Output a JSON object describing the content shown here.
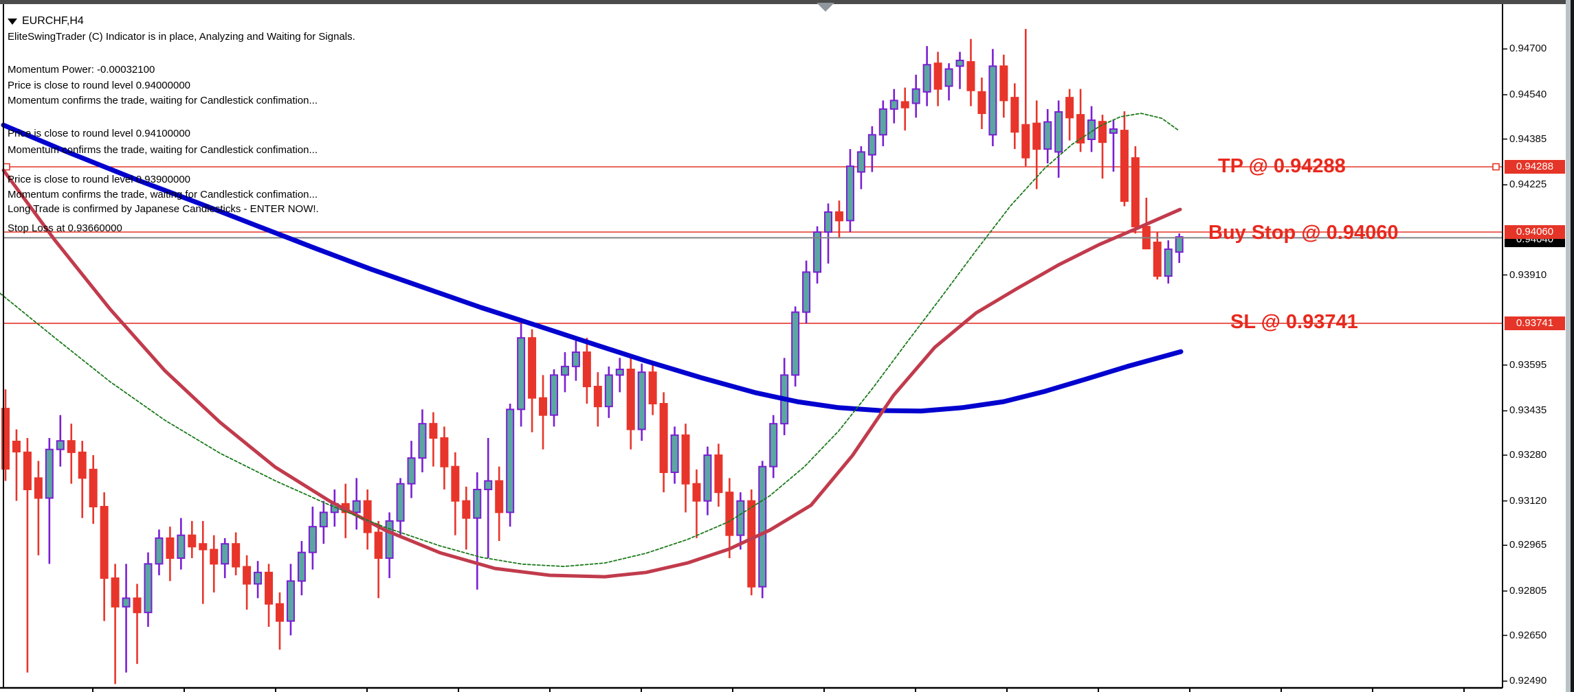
{
  "window": {
    "app_context": "MetaTrader chart window",
    "titlebar_color": "#4b4b4b"
  },
  "symbol_header": {
    "dropdown_icon": "triangle-down",
    "symbol": "EURCHF,H4"
  },
  "comment_block": {
    "lines": [
      "EliteSwingTrader (C) Indicator is in place, Analyzing and Waiting for Signals.",
      "Momentum Power: -0.00032100",
      "Price is close to round level 0.94000000",
      "Momentum confirms the trade, waiting for Candlestick confimation...",
      "Price is close to round level 0.94100000",
      "Momentum confirms the trade, waiting for Candlestick confimation...",
      "Price is close to round level 0.93900000",
      "Momentum confirms the trade, waiting for Candlestick confimation...",
      "Long Trade is confirmed by Japanese Candlesticks - ENTER NOW!.",
      "Stop Loss at 0.93660000"
    ]
  },
  "trade_labels": {
    "tp": "TP @ 0.94288",
    "buy_stop": "Buy Stop @ 0.94060",
    "sl": "SL @ 0.93741"
  },
  "price_axis": {
    "ticks": [
      "0.94700",
      "0.94540",
      "0.94385",
      "0.94225",
      "0.93910",
      "0.93595",
      "0.93435",
      "0.93280",
      "0.93120",
      "0.92965",
      "0.92805",
      "0.92650",
      "0.92490"
    ],
    "badge_tp": "0.94288",
    "badge_buy_stop": "0.94060",
    "badge_sl": "0.93741",
    "badge_bid": "0.94040"
  },
  "colors": {
    "bull_body": "#5aa7a1",
    "bull_outline": "#7a1fd2",
    "bear_body": "#e8352b",
    "line_red": "#e53528",
    "bid_gray": "#7f8487",
    "ma_blue": "#0202cf",
    "ma_crimson": "#c13b4c",
    "ma_green": "#1b7a1b",
    "label_red": "#e8291e"
  },
  "chart_data": {
    "type": "candlestick",
    "symbol": "EURCHF",
    "timeframe": "H4",
    "ylim": [
      0.9244,
      0.9481
    ],
    "price_ticks": [
      0.947,
      0.9454,
      0.94385,
      0.94225,
      0.9391,
      0.93595,
      0.93435,
      0.9328,
      0.9312,
      0.92965,
      0.92805,
      0.9265,
      0.9249
    ],
    "h_lines": [
      {
        "name": "tp-line",
        "price": 0.94288,
        "color": "#e53528",
        "end_squares": true
      },
      {
        "name": "buy-stop-line",
        "price": 0.9406,
        "color": "#e53528",
        "end_squares": false
      },
      {
        "name": "sl-line",
        "price": 0.93741,
        "color": "#e53528",
        "end_squares": false
      }
    ],
    "bid_line": {
      "price": 0.9404,
      "color": "#7f8487"
    },
    "ohlc": [
      [
        0.93443,
        0.9351,
        0.9319,
        0.93232
      ],
      [
        0.93328,
        0.9337,
        0.9312,
        0.93292
      ],
      [
        0.9329,
        0.9334,
        0.9252,
        0.9316
      ],
      [
        0.932,
        0.9326,
        0.9293,
        0.9313
      ],
      [
        0.9313,
        0.9334,
        0.929,
        0.933
      ],
      [
        0.933,
        0.9342,
        0.9324,
        0.9333
      ],
      [
        0.9333,
        0.9339,
        0.9318,
        0.9329
      ],
      [
        0.9329,
        0.9333,
        0.9306,
        0.932
      ],
      [
        0.9323,
        0.9328,
        0.9304,
        0.931
      ],
      [
        0.931,
        0.9315,
        0.927,
        0.9285
      ],
      [
        0.9285,
        0.929,
        0.9248,
        0.9275
      ],
      [
        0.9275,
        0.929,
        0.9252,
        0.9278
      ],
      [
        0.9278,
        0.9283,
        0.9255,
        0.9273
      ],
      [
        0.9273,
        0.9294,
        0.9268,
        0.929
      ],
      [
        0.929,
        0.9302,
        0.9286,
        0.9299
      ],
      [
        0.9299,
        0.9303,
        0.9284,
        0.9292
      ],
      [
        0.9292,
        0.9306,
        0.9288,
        0.93
      ],
      [
        0.93,
        0.9305,
        0.9292,
        0.9296
      ],
      [
        0.9297,
        0.9305,
        0.9276,
        0.9295
      ],
      [
        0.9295,
        0.93,
        0.928,
        0.929
      ],
      [
        0.929,
        0.9299,
        0.9285,
        0.9297
      ],
      [
        0.9297,
        0.9301,
        0.9286,
        0.9289
      ],
      [
        0.9289,
        0.9293,
        0.9274,
        0.9283
      ],
      [
        0.9283,
        0.9291,
        0.9278,
        0.9287
      ],
      [
        0.9287,
        0.929,
        0.9268,
        0.9276
      ],
      [
        0.9276,
        0.928,
        0.926,
        0.927
      ],
      [
        0.927,
        0.929,
        0.9265,
        0.9284
      ],
      [
        0.9284,
        0.9298,
        0.9279,
        0.9294
      ],
      [
        0.9294,
        0.931,
        0.9288,
        0.9303
      ],
      [
        0.9303,
        0.9312,
        0.9297,
        0.9308
      ],
      [
        0.9308,
        0.9316,
        0.9303,
        0.9311
      ],
      [
        0.9311,
        0.9318,
        0.9299,
        0.9308
      ],
      [
        0.9308,
        0.932,
        0.9302,
        0.9312
      ],
      [
        0.9312,
        0.9316,
        0.9295,
        0.9301
      ],
      [
        0.9301,
        0.9305,
        0.9278,
        0.9292
      ],
      [
        0.9292,
        0.9308,
        0.9285,
        0.9305
      ],
      [
        0.9305,
        0.932,
        0.93,
        0.9318
      ],
      [
        0.9318,
        0.9333,
        0.9313,
        0.9327
      ],
      [
        0.9327,
        0.9344,
        0.9322,
        0.9339
      ],
      [
        0.9339,
        0.9343,
        0.9324,
        0.9334
      ],
      [
        0.9334,
        0.9338,
        0.9316,
        0.9324
      ],
      [
        0.9324,
        0.9329,
        0.93,
        0.9312
      ],
      [
        0.9312,
        0.9317,
        0.9295,
        0.9306
      ],
      [
        0.9306,
        0.9322,
        0.9281,
        0.9316
      ],
      [
        0.9316,
        0.9334,
        0.9292,
        0.9319
      ],
      [
        0.9319,
        0.9324,
        0.9298,
        0.9308
      ],
      [
        0.9308,
        0.9346,
        0.9303,
        0.9344
      ],
      [
        0.9344,
        0.9374,
        0.9338,
        0.9369
      ],
      [
        0.9369,
        0.9372,
        0.9336,
        0.9348
      ],
      [
        0.9348,
        0.9356,
        0.933,
        0.9342
      ],
      [
        0.9342,
        0.9358,
        0.9338,
        0.9356
      ],
      [
        0.9356,
        0.9364,
        0.935,
        0.9359
      ],
      [
        0.9359,
        0.9368,
        0.9354,
        0.9364
      ],
      [
        0.9364,
        0.9369,
        0.9346,
        0.9352
      ],
      [
        0.9352,
        0.9357,
        0.9338,
        0.9345
      ],
      [
        0.9345,
        0.9359,
        0.9341,
        0.9356
      ],
      [
        0.9356,
        0.9362,
        0.935,
        0.9358
      ],
      [
        0.9358,
        0.9362,
        0.933,
        0.9337
      ],
      [
        0.9337,
        0.936,
        0.9333,
        0.9357
      ],
      [
        0.9357,
        0.9361,
        0.9342,
        0.9346
      ],
      [
        0.9346,
        0.935,
        0.9315,
        0.9322
      ],
      [
        0.9322,
        0.9338,
        0.9318,
        0.9335
      ],
      [
        0.9335,
        0.9339,
        0.9308,
        0.9318
      ],
      [
        0.9318,
        0.9323,
        0.9299,
        0.9312
      ],
      [
        0.9312,
        0.9331,
        0.9307,
        0.9328
      ],
      [
        0.9328,
        0.9332,
        0.931,
        0.9315
      ],
      [
        0.9315,
        0.932,
        0.9292,
        0.93
      ],
      [
        0.93,
        0.9315,
        0.9295,
        0.9312
      ],
      [
        0.9312,
        0.9316,
        0.9279,
        0.9282
      ],
      [
        0.9282,
        0.9326,
        0.9278,
        0.9324
      ],
      [
        0.9324,
        0.9342,
        0.932,
        0.9339
      ],
      [
        0.9339,
        0.9362,
        0.9335,
        0.9356
      ],
      [
        0.9356,
        0.938,
        0.9352,
        0.9378
      ],
      [
        0.9378,
        0.9396,
        0.9374,
        0.9392
      ],
      [
        0.9392,
        0.9408,
        0.9388,
        0.9406
      ],
      [
        0.9406,
        0.9416,
        0.9395,
        0.9413
      ],
      [
        0.9413,
        0.9417,
        0.9404,
        0.941
      ],
      [
        0.941,
        0.9435,
        0.9406,
        0.9429
      ],
      [
        0.9427,
        0.9436,
        0.9421,
        0.9434
      ],
      [
        0.9433,
        0.9443,
        0.9427,
        0.944
      ],
      [
        0.944,
        0.9452,
        0.9436,
        0.9449
      ],
      [
        0.9449,
        0.9456,
        0.9444,
        0.9452
      ],
      [
        0.94515,
        0.94565,
        0.94415,
        0.94495
      ],
      [
        0.9451,
        0.9461,
        0.9446,
        0.9456
      ],
      [
        0.9455,
        0.9471,
        0.945,
        0.94645
      ],
      [
        0.9465,
        0.9469,
        0.945,
        0.9456
      ],
      [
        0.9457,
        0.9465,
        0.9452,
        0.9463
      ],
      [
        0.9464,
        0.9469,
        0.9456,
        0.9466
      ],
      [
        0.94655,
        0.94735,
        0.945,
        0.94555
      ],
      [
        0.9455,
        0.946,
        0.9442,
        0.94475
      ],
      [
        0.944,
        0.947,
        0.9436,
        0.9464
      ],
      [
        0.9464,
        0.9468,
        0.9446,
        0.9452
      ],
      [
        0.9453,
        0.9458,
        0.9435,
        0.9441
      ],
      [
        0.94435,
        0.9477,
        0.9429,
        0.9432
      ],
      [
        0.9444,
        0.9452,
        0.9421,
        0.9435
      ],
      [
        0.9435,
        0.9449,
        0.943,
        0.94445
      ],
      [
        0.9434,
        0.9452,
        0.9425,
        0.9448
      ],
      [
        0.9453,
        0.9456,
        0.9438,
        0.9446
      ],
      [
        0.9447,
        0.9456,
        0.9434,
        0.94372
      ],
      [
        0.94384,
        0.945,
        0.9434,
        0.94451
      ],
      [
        0.94446,
        0.9447,
        0.94247,
        0.94374
      ],
      [
        0.94406,
        0.94451,
        0.94271,
        0.9442
      ],
      [
        0.94415,
        0.94482,
        0.9415,
        0.94168
      ],
      [
        0.94319,
        0.9436,
        0.94055,
        0.94079
      ],
      [
        0.94079,
        0.9418,
        0.94,
        0.94002
      ],
      [
        0.94024,
        0.9406,
        0.93894,
        0.93906
      ],
      [
        0.93906,
        0.94031,
        0.9388,
        0.94
      ],
      [
        0.9399,
        0.94055,
        0.93952,
        0.94043
      ]
    ],
    "series": [
      {
        "name": "slow-ma-blue",
        "color": "#0202cf",
        "width": 7,
        "dash": null,
        "points": [
          [
            5,
            0.94434
          ],
          [
            100,
            0.94338
          ],
          [
            200,
            0.94242
          ],
          [
            300,
            0.94151
          ],
          [
            377,
            0.94079
          ],
          [
            460,
            0.94002
          ],
          [
            540,
            0.9393
          ],
          [
            620,
            0.93863
          ],
          [
            700,
            0.93796
          ],
          [
            780,
            0.93734
          ],
          [
            860,
            0.93671
          ],
          [
            940,
            0.93609
          ],
          [
            1020,
            0.93551
          ],
          [
            1100,
            0.93498
          ],
          [
            1160,
            0.93467
          ],
          [
            1220,
            0.93446
          ],
          [
            1280,
            0.93436
          ],
          [
            1340,
            0.93434
          ],
          [
            1400,
            0.93446
          ],
          [
            1460,
            0.93467
          ],
          [
            1520,
            0.93503
          ],
          [
            1580,
            0.93546
          ],
          [
            1640,
            0.9359
          ],
          [
            1718,
            0.93642
          ]
        ]
      },
      {
        "name": "medium-ma-crimson",
        "color": "#c13b4c",
        "width": 5,
        "dash": null,
        "points": [
          [
            5,
            0.94276
          ],
          [
            80,
            0.94031
          ],
          [
            160,
            0.93791
          ],
          [
            240,
            0.93575
          ],
          [
            320,
            0.93395
          ],
          [
            400,
            0.93239
          ],
          [
            480,
            0.93119
          ],
          [
            560,
            0.93018
          ],
          [
            640,
            0.92939
          ],
          [
            720,
            0.92884
          ],
          [
            800,
            0.9286
          ],
          [
            880,
            0.92855
          ],
          [
            940,
            0.9287
          ],
          [
            1000,
            0.92903
          ],
          [
            1060,
            0.92951
          ],
          [
            1120,
            0.93018
          ],
          [
            1180,
            0.93105
          ],
          [
            1240,
            0.93278
          ],
          [
            1300,
            0.93489
          ],
          [
            1360,
            0.93657
          ],
          [
            1420,
            0.93777
          ],
          [
            1480,
            0.93863
          ],
          [
            1540,
            0.93945
          ],
          [
            1600,
            0.94017
          ],
          [
            1660,
            0.94079
          ],
          [
            1717,
            0.94139
          ]
        ]
      },
      {
        "name": "fast-ma-green",
        "color": "#1b7a1b",
        "width": 1.8,
        "dash": "4 3",
        "points": [
          [
            0,
            0.93846
          ],
          [
            80,
            0.9369
          ],
          [
            160,
            0.93537
          ],
          [
            240,
            0.93402
          ],
          [
            320,
            0.93287
          ],
          [
            400,
            0.93191
          ],
          [
            480,
            0.93105
          ],
          [
            560,
            0.93028
          ],
          [
            640,
            0.92963
          ],
          [
            700,
            0.92923
          ],
          [
            760,
            0.92899
          ],
          [
            820,
            0.92891
          ],
          [
            880,
            0.92903
          ],
          [
            940,
            0.92937
          ],
          [
            1000,
            0.92985
          ],
          [
            1060,
            0.93047
          ],
          [
            1120,
            0.93138
          ],
          [
            1170,
            0.93239
          ],
          [
            1220,
            0.93364
          ],
          [
            1270,
            0.93515
          ],
          [
            1320,
            0.93676
          ],
          [
            1370,
            0.93834
          ],
          [
            1420,
            0.93995
          ],
          [
            1470,
            0.94151
          ],
          [
            1520,
            0.94283
          ],
          [
            1560,
            0.94367
          ],
          [
            1600,
            0.9443
          ],
          [
            1630,
            0.94463
          ],
          [
            1660,
            0.94475
          ],
          [
            1690,
            0.94458
          ],
          [
            1715,
            0.94415
          ]
        ]
      }
    ]
  }
}
